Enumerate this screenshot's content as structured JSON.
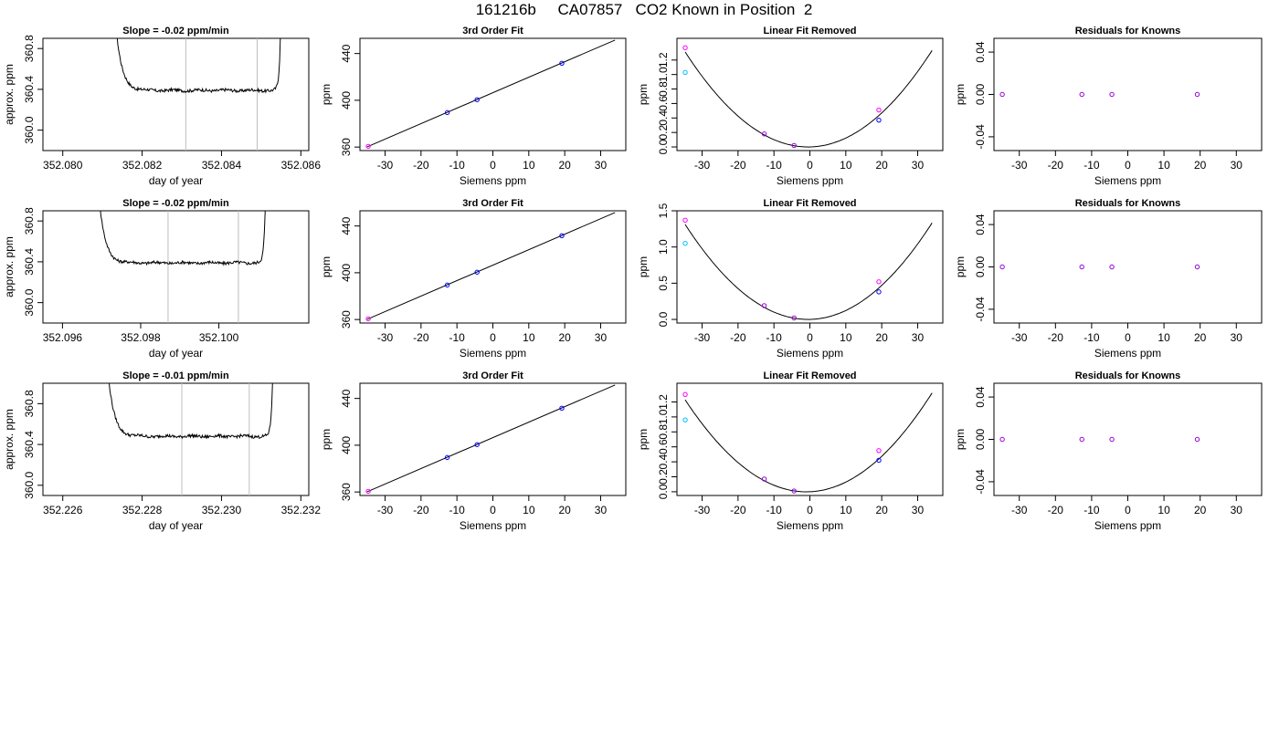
{
  "page": {
    "title": "161216b     CA07857   CO2 Known in Position  2"
  },
  "colors": {
    "axis": "#000000",
    "trace": "#000000",
    "vline": "#bebebe",
    "fitline": "#000000",
    "blue": "#0000ff",
    "magenta": "#ff00ff",
    "cyan": "#00bfff",
    "purple": "#9400d3"
  },
  "chart_data": [
    {
      "type": "line",
      "panel": "time-trace",
      "row": 0,
      "title": "Slope =  -0.02  ppm/min",
      "xlabel": "day of year",
      "ylabel": "approx. ppm",
      "xlim": [
        352.0795,
        352.0862
      ],
      "ylim": [
        359.8,
        360.9
      ],
      "xticks": [
        352.08,
        352.082,
        352.084,
        352.086
      ],
      "xtick_labels": [
        "352.080",
        "352.082",
        "352.084",
        "352.086"
      ],
      "yticks": [
        360.0,
        360.4,
        360.8
      ],
      "ytick_labels": [
        "360.0",
        "360.4",
        "360.8"
      ],
      "vlines": [
        352.0831,
        352.0849
      ],
      "trace": {
        "x_start": 352.0813,
        "x_end": 352.0855,
        "plateau": 360.39,
        "start_value": 361.2,
        "end_value": 361.2
      }
    },
    {
      "type": "line",
      "panel": "time-trace",
      "row": 1,
      "title": "Slope =  -0.02  ppm/min",
      "xlabel": "day of year",
      "ylabel": "approx. ppm",
      "xlim": [
        352.0955,
        352.1023
      ],
      "ylim": [
        359.8,
        360.9
      ],
      "xticks": [
        352.096,
        352.098,
        352.1
      ],
      "xtick_labels": [
        "352.096",
        "352.098",
        "352.100"
      ],
      "yticks": [
        360.0,
        360.4,
        360.8
      ],
      "ytick_labels": [
        "360.0",
        "360.4",
        "360.8"
      ],
      "vlines": [
        352.0987,
        352.1005
      ],
      "trace": {
        "x_start": 352.0969,
        "x_end": 352.1012,
        "plateau": 360.39,
        "start_value": 361.2,
        "end_value": 361.2
      }
    },
    {
      "type": "line",
      "panel": "time-trace",
      "row": 2,
      "title": "Slope =  -0.01  ppm/min",
      "xlabel": "day of year",
      "ylabel": "approx. ppm",
      "xlim": [
        352.2255,
        352.2322
      ],
      "ylim": [
        359.9,
        361.0
      ],
      "xticks": [
        352.226,
        352.228,
        352.23,
        352.232
      ],
      "xtick_labels": [
        "352.226",
        "352.228",
        "352.230",
        "352.232"
      ],
      "yticks": [
        360.0,
        360.4,
        360.8
      ],
      "ytick_labels": [
        "360.0",
        "360.4",
        "360.8"
      ],
      "vlines": [
        352.229,
        352.2307
      ],
      "trace": {
        "x_start": 352.2271,
        "x_end": 352.2313,
        "plateau": 360.48,
        "start_value": 361.3,
        "end_value": 361.3
      }
    },
    {
      "type": "scatter",
      "panel": "fit",
      "row": 0,
      "title": "3rd Order Fit",
      "xlabel": "Siemens ppm",
      "ylabel": "ppm",
      "xlim": [
        -37,
        37
      ],
      "ylim": [
        357,
        453
      ],
      "xticks": [
        -30,
        -20,
        -10,
        0,
        10,
        20,
        30
      ],
      "xtick_labels": [
        "-30",
        "-20",
        "-10",
        "0",
        "10",
        "20",
        "30"
      ],
      "yticks": [
        360,
        400,
        440
      ],
      "ytick_labels": [
        "360",
        "400",
        "440"
      ],
      "line": [
        [
          -35,
          360.2
        ],
        [
          34,
          451.5
        ]
      ],
      "points": [
        {
          "x": -34.7,
          "y": 360.6,
          "color": "magenta"
        },
        {
          "x": -12.7,
          "y": 389.5,
          "color": "blue"
        },
        {
          "x": -4.4,
          "y": 400.5,
          "color": "blue"
        },
        {
          "x": 19.2,
          "y": 431.7,
          "color": "blue"
        }
      ]
    },
    {
      "type": "scatter",
      "panel": "fit",
      "row": 1,
      "title": "3rd Order Fit",
      "xlabel": "Siemens ppm",
      "ylabel": "ppm",
      "xlim": [
        -37,
        37
      ],
      "ylim": [
        357,
        453
      ],
      "xticks": [
        -30,
        -20,
        -10,
        0,
        10,
        20,
        30
      ],
      "xtick_labels": [
        "-30",
        "-20",
        "-10",
        "0",
        "10",
        "20",
        "30"
      ],
      "yticks": [
        360,
        400,
        440
      ],
      "ytick_labels": [
        "360",
        "400",
        "440"
      ],
      "line": [
        [
          -35,
          360.2
        ],
        [
          34,
          451.5
        ]
      ],
      "points": [
        {
          "x": -34.7,
          "y": 360.6,
          "color": "magenta"
        },
        {
          "x": -12.7,
          "y": 389.5,
          "color": "blue"
        },
        {
          "x": -4.4,
          "y": 400.5,
          "color": "blue"
        },
        {
          "x": 19.2,
          "y": 431.7,
          "color": "blue"
        }
      ]
    },
    {
      "type": "scatter",
      "panel": "fit",
      "row": 2,
      "title": "3rd Order Fit",
      "xlabel": "Siemens ppm",
      "ylabel": "ppm",
      "xlim": [
        -37,
        37
      ],
      "ylim": [
        357,
        453
      ],
      "xticks": [
        -30,
        -20,
        -10,
        0,
        10,
        20,
        30
      ],
      "xtick_labels": [
        "-30",
        "-20",
        "-10",
        "0",
        "10",
        "20",
        "30"
      ],
      "yticks": [
        360,
        400,
        440
      ],
      "ytick_labels": [
        "360",
        "400",
        "440"
      ],
      "line": [
        [
          -35,
          360.2
        ],
        [
          34,
          451.5
        ]
      ],
      "points": [
        {
          "x": -34.7,
          "y": 360.6,
          "color": "magenta"
        },
        {
          "x": -12.7,
          "y": 389.5,
          "color": "blue"
        },
        {
          "x": -4.4,
          "y": 400.5,
          "color": "blue"
        },
        {
          "x": 19.2,
          "y": 431.7,
          "color": "blue"
        }
      ]
    },
    {
      "type": "scatter",
      "panel": "residual-curve",
      "row": 0,
      "title": "Linear Fit Removed",
      "xlabel": "Siemens ppm",
      "ylabel": "ppm",
      "xlim": [
        -37,
        37
      ],
      "ylim": [
        -0.05,
        1.5
      ],
      "xticks": [
        -30,
        -20,
        -10,
        0,
        10,
        20,
        30
      ],
      "xtick_labels": [
        "-30",
        "-20",
        "-10",
        "0",
        "10",
        "20",
        "30"
      ],
      "yticks": [
        0.0,
        0.2,
        0.4,
        0.6,
        0.8,
        1.0,
        1.2
      ],
      "ytick_labels": [
        "0.0",
        "0.2",
        "0.4",
        "0.6",
        "0.8",
        "1.0",
        "1.2"
      ],
      "curve": {
        "x_min": -34.7,
        "x_max": 34,
        "a": 0.00112,
        "b": 0.0011
      },
      "points": [
        {
          "x": -34.7,
          "y": 1.37,
          "color": "magenta"
        },
        {
          "x": -34.7,
          "y": 1.03,
          "color": "cyan"
        },
        {
          "x": -12.7,
          "y": 0.18,
          "color": "purple"
        },
        {
          "x": -4.4,
          "y": 0.02,
          "color": "purple"
        },
        {
          "x": 19.2,
          "y": 0.51,
          "color": "magenta"
        },
        {
          "x": 19.2,
          "y": 0.37,
          "color": "blue"
        }
      ]
    },
    {
      "type": "scatter",
      "panel": "residual-curve",
      "row": 1,
      "title": "Linear Fit Removed",
      "xlabel": "Siemens ppm",
      "ylabel": "ppm",
      "xlim": [
        -37,
        37
      ],
      "ylim": [
        -0.05,
        1.5
      ],
      "xticks": [
        -30,
        -20,
        -10,
        0,
        10,
        20,
        30
      ],
      "xtick_labels": [
        "-30",
        "-20",
        "-10",
        "0",
        "10",
        "20",
        "30"
      ],
      "yticks": [
        0.0,
        0.5,
        1.0,
        1.5
      ],
      "ytick_labels": [
        "0.0",
        "0.5",
        "1.0",
        "1.5"
      ],
      "curve": {
        "x_min": -34.7,
        "x_max": 34,
        "a": 0.00112,
        "b": 0.0011
      },
      "points": [
        {
          "x": -34.7,
          "y": 1.37,
          "color": "magenta"
        },
        {
          "x": -34.7,
          "y": 1.05,
          "color": "cyan"
        },
        {
          "x": -12.7,
          "y": 0.19,
          "color": "purple"
        },
        {
          "x": -4.4,
          "y": 0.02,
          "color": "purple"
        },
        {
          "x": 19.2,
          "y": 0.52,
          "color": "magenta"
        },
        {
          "x": 19.2,
          "y": 0.38,
          "color": "blue"
        }
      ]
    },
    {
      "type": "scatter",
      "panel": "residual-curve",
      "row": 2,
      "title": "Linear Fit Removed",
      "xlabel": "Siemens ppm",
      "ylabel": "ppm",
      "xlim": [
        -37,
        37
      ],
      "ylim": [
        -0.05,
        1.45
      ],
      "xticks": [
        -30,
        -20,
        -10,
        0,
        10,
        20,
        30
      ],
      "xtick_labels": [
        "-30",
        "-20",
        "-10",
        "0",
        "10",
        "20",
        "30"
      ],
      "yticks": [
        0.0,
        0.2,
        0.4,
        0.6,
        0.8,
        1.0,
        1.2
      ],
      "ytick_labels": [
        "0.0",
        "0.2",
        "0.4",
        "0.6",
        "0.8",
        "1.0",
        "1.2"
      ],
      "curve": {
        "x_min": -34.7,
        "x_max": 34,
        "a": 0.00108,
        "b": 0.0021
      },
      "points": [
        {
          "x": -34.7,
          "y": 1.3,
          "color": "magenta"
        },
        {
          "x": -34.7,
          "y": 0.96,
          "color": "cyan"
        },
        {
          "x": -12.7,
          "y": 0.17,
          "color": "purple"
        },
        {
          "x": -4.4,
          "y": 0.01,
          "color": "purple"
        },
        {
          "x": 19.2,
          "y": 0.55,
          "color": "magenta"
        },
        {
          "x": 19.2,
          "y": 0.42,
          "color": "blue"
        }
      ]
    },
    {
      "type": "scatter",
      "panel": "residuals",
      "row": 0,
      "title": "Residuals for Knowns",
      "xlabel": "Siemens ppm",
      "ylabel": "ppm",
      "xlim": [
        -37,
        37
      ],
      "ylim": [
        -0.053,
        0.053
      ],
      "xticks": [
        -30,
        -20,
        -10,
        0,
        10,
        20,
        30
      ],
      "xtick_labels": [
        "-30",
        "-20",
        "-10",
        "0",
        "10",
        "20",
        "30"
      ],
      "yticks": [
        -0.04,
        0.0,
        0.04
      ],
      "ytick_labels": [
        "-0.04",
        "0.00",
        "0.04"
      ],
      "points": [
        {
          "x": -34.7,
          "y": 0.0,
          "color": "purple"
        },
        {
          "x": -12.7,
          "y": 0.0,
          "color": "purple"
        },
        {
          "x": -4.4,
          "y": 0.0,
          "color": "purple"
        },
        {
          "x": 19.2,
          "y": 0.0,
          "color": "purple"
        }
      ]
    },
    {
      "type": "scatter",
      "panel": "residuals",
      "row": 1,
      "title": "Residuals for Knowns",
      "xlabel": "Siemens ppm",
      "ylabel": "ppm",
      "xlim": [
        -37,
        37
      ],
      "ylim": [
        -0.053,
        0.053
      ],
      "xticks": [
        -30,
        -20,
        -10,
        0,
        10,
        20,
        30
      ],
      "xtick_labels": [
        "-30",
        "-20",
        "-10",
        "0",
        "10",
        "20",
        "30"
      ],
      "yticks": [
        -0.04,
        0.0,
        0.04
      ],
      "ytick_labels": [
        "-0.04",
        "0.00",
        "0.04"
      ],
      "points": [
        {
          "x": -34.7,
          "y": 0.0,
          "color": "purple"
        },
        {
          "x": -12.7,
          "y": 0.0,
          "color": "purple"
        },
        {
          "x": -4.4,
          "y": 0.0,
          "color": "purple"
        },
        {
          "x": 19.2,
          "y": 0.0,
          "color": "purple"
        }
      ]
    },
    {
      "type": "scatter",
      "panel": "residuals",
      "row": 2,
      "title": "Residuals for Knowns",
      "xlabel": "Siemens ppm",
      "ylabel": "ppm",
      "xlim": [
        -37,
        37
      ],
      "ylim": [
        -0.053,
        0.053
      ],
      "xticks": [
        -30,
        -20,
        -10,
        0,
        10,
        20,
        30
      ],
      "xtick_labels": [
        "-30",
        "-20",
        "-10",
        "0",
        "10",
        "20",
        "30"
      ],
      "yticks": [
        -0.04,
        0.0,
        0.04
      ],
      "ytick_labels": [
        "-0.04",
        "0.00",
        "0.04"
      ],
      "points": [
        {
          "x": -34.7,
          "y": 0.0,
          "color": "purple"
        },
        {
          "x": -12.7,
          "y": 0.0,
          "color": "purple"
        },
        {
          "x": -4.4,
          "y": 0.0,
          "color": "purple"
        },
        {
          "x": 19.2,
          "y": 0.0,
          "color": "purple"
        }
      ]
    }
  ]
}
